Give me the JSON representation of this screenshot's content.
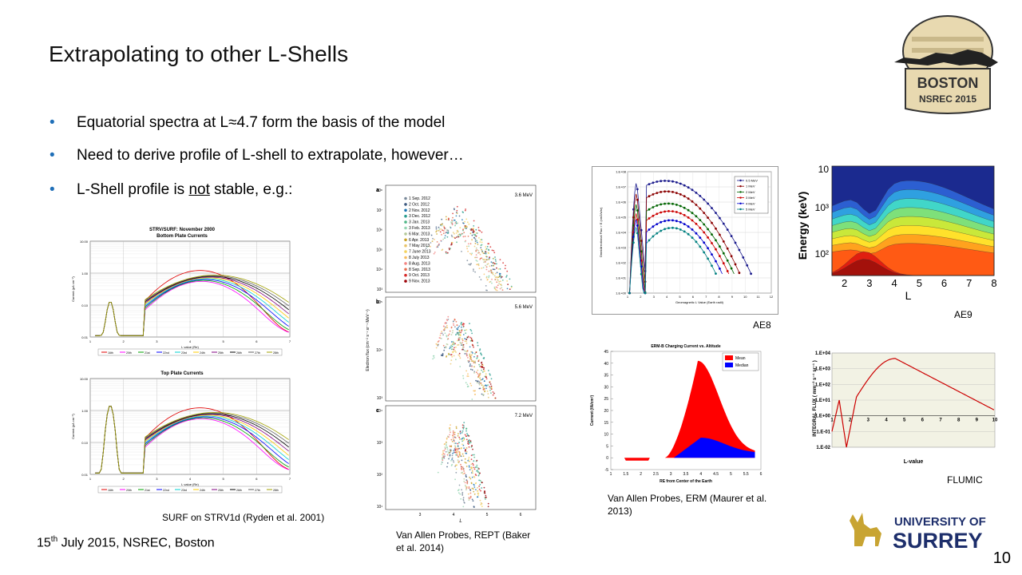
{
  "slide": {
    "title": "Extrapolating to other L-Shells",
    "bullets": [
      {
        "before": "Equatorial spectra at L≈4.7 form the basis of the model",
        "emph": "",
        "after": ""
      },
      {
        "before": "Need to derive profile of L-shell to extrapolate, however…",
        "emph": "",
        "after": ""
      },
      {
        "before": "L-Shell profile is ",
        "emph": "not",
        "after": " stable, e.g.:"
      }
    ],
    "footer": {
      "date_num": "15",
      "date_sup": "th",
      "rest": " July 2015, NSREC, Boston"
    },
    "page_number": "10",
    "logos": {
      "boston": {
        "line1": "BOSTON",
        "line2": "NSREC 2015"
      },
      "surrey": {
        "line1": "UNIVERSITY OF",
        "line2": "SURREY"
      }
    }
  },
  "figures": {
    "surf": {
      "caption": "SURF on STRV1d (Ryden et al. 2001)",
      "bottom_title": "STRV/SURF: November 2000",
      "bottom_subtitle": "Bottom Plate Currents",
      "top_title": "Top Plate Currents",
      "ylabel": "Current (pA cm⁻²)",
      "xlabel": "L value (Re)",
      "yticks": [
        "10.00",
        "1.00",
        "0.10",
        "0.01"
      ],
      "xticks": [
        "1",
        "2",
        "3",
        "4",
        "5",
        "6",
        "7"
      ],
      "legend": [
        "16th",
        "20th",
        "21st",
        "22nd",
        "23rd",
        "24th",
        "25th",
        "26th",
        "27th",
        "28th"
      ],
      "colors": [
        "#e00000",
        "#ff00ff",
        "#00a000",
        "#0000ff",
        "#00d0d0",
        "#ffcc00",
        "#800080",
        "#000000",
        "#606060",
        "#a0a000"
      ]
    },
    "rept": {
      "caption": "Van Allen Probes, REPT (Baker et al. 2014)",
      "panel_letters": [
        "a",
        "b",
        "c"
      ],
      "energies": [
        "3.6 MeV",
        "5.6 MeV",
        "7.2 MeV"
      ],
      "ylabel": "Electron flux (cm⁻² s⁻¹ sr⁻¹ MeV⁻¹)",
      "xlabel": "L",
      "legend": [
        "1 Sep. 2012",
        "2 Oct. 2012",
        "2 Nov. 2012",
        "3 Dec. 2012",
        "3 Jan. 2013",
        "3 Feb. 2013",
        "6 Mar. 2013",
        "6 Apr. 2013",
        "7 May 2013",
        "7 June 2013",
        "8 July 2013",
        "8 Aug. 2013",
        "8 Sep. 2013",
        "9 Oct. 2013",
        "9 Nov. 2013"
      ],
      "legend_colors": [
        "#7a8a9a",
        "#3d5a80",
        "#1f77b4",
        "#2a9d8f",
        "#52b788",
        "#95d5b2",
        "#b5c99a",
        "#c9a227",
        "#e9c46a",
        "#f4d35e",
        "#f6bd60",
        "#f28482",
        "#e76f51",
        "#d62828",
        "#9d0208"
      ],
      "yticks_a": [
        "10⁸",
        "10⁷",
        "10⁶",
        "10⁵",
        "10⁴",
        "10³"
      ],
      "yticks_b": [
        "10⁵",
        "10⁴",
        "10³"
      ],
      "yticks_c": [
        "10⁴",
        "10³",
        "10²",
        "10¹"
      ],
      "xticks": [
        "3",
        "4",
        "5",
        "6"
      ]
    },
    "ae8": {
      "caption": "AE8",
      "ylabel": "Omnidirectional Flux > E (cm2/s/sr)",
      "xlabel": "Geomagnetic L Value (Earth radii)",
      "yticks": [
        "1.E+08",
        "1.E+07",
        "1.E+06",
        "1.E+05",
        "1.E+04",
        "1.E+03",
        "1.E+02",
        "1.E+01",
        "1.E+00"
      ],
      "xticks": [
        "1",
        "2",
        "3",
        "4",
        "5",
        "6",
        "7",
        "8",
        "9",
        "10",
        "11",
        "12"
      ],
      "legend": [
        "0.5 MeV",
        "1 MeV",
        "2 MeV",
        "3 MeV",
        "4 MeV",
        "5 MeV"
      ],
      "colors": [
        "#1a1a8c",
        "#8b0000",
        "#006400",
        "#cc0000",
        "#0000cc",
        "#008080"
      ]
    },
    "ae9": {
      "caption": "AE9",
      "ylabel": "Energy (keV)",
      "xlabel": "L",
      "yticks": [
        "10",
        "10³",
        "10²"
      ],
      "xticks": [
        "2",
        "3",
        "4",
        "5",
        "6",
        "7",
        "8"
      ]
    },
    "erm": {
      "caption": "Van Allen Probes, ERM (Maurer et al. 2013)",
      "title": "ERM-B Charging Current vs. Altitude",
      "ylabel": "Current (fA/cm²)",
      "xlabel": "RE from Center of the Earth",
      "yticks": [
        "45",
        "40",
        "35",
        "30",
        "25",
        "20",
        "15",
        "10",
        "5",
        "0",
        "-5"
      ],
      "xticks": [
        "1",
        "1.5",
        "2",
        "2.5",
        "3",
        "3.5",
        "4",
        "4.5",
        "5",
        "5.5",
        "6"
      ],
      "legend": [
        "Mean",
        "Median"
      ],
      "colors": [
        "#ff0000",
        "#0000ff"
      ]
    },
    "flumic": {
      "caption": "FLUMIC",
      "ylabel": "INTEGRAL FLUX ( mm⁻² s⁻¹ sr⁻¹ )",
      "xlabel": "L-value",
      "yticks": [
        "1.E+04",
        "1.E+03",
        "1.E+02",
        "1.E+01",
        "1.E+00",
        "1.E-01",
        "1.E-02"
      ],
      "xticks": [
        "1",
        "2",
        "3",
        "4",
        "5",
        "6",
        "7",
        "8",
        "9",
        "10"
      ]
    }
  }
}
